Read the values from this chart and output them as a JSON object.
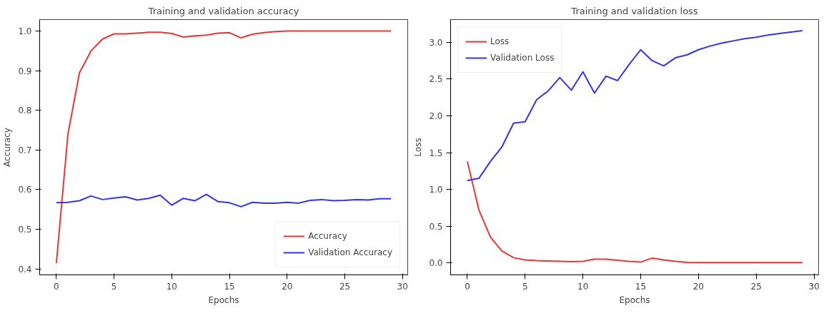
{
  "chart_data": [
    {
      "type": "line",
      "title": "Training and validation accuracy",
      "xlabel": "Epochs",
      "ylabel": "Accuracy",
      "legend": "bottom right",
      "grid": false,
      "x": [
        0,
        1,
        2,
        3,
        4,
        5,
        6,
        7,
        8,
        9,
        10,
        11,
        12,
        13,
        14,
        15,
        16,
        17,
        18,
        19,
        20,
        21,
        22,
        23,
        24,
        25,
        26,
        27,
        28,
        29
      ],
      "xlim": [
        -1.45,
        30.45
      ],
      "xticks": [
        0,
        5,
        10,
        15,
        20,
        25,
        30
      ],
      "ylim": [
        0.385,
        1.029
      ],
      "yticks": [
        {
          "value": 0.4,
          "label": "0.4"
        },
        {
          "value": 0.5,
          "label": "0.5"
        },
        {
          "value": 0.6,
          "label": "0.6"
        },
        {
          "value": 0.7,
          "label": "0.7"
        },
        {
          "value": 0.8,
          "label": "0.8"
        },
        {
          "value": 0.9,
          "label": "0.9"
        },
        {
          "value": 1.0,
          "label": "1.0"
        }
      ],
      "series": [
        {
          "name": "Accuracy",
          "color": "#ee3333",
          "values": [
            0.415,
            0.74,
            0.895,
            0.95,
            0.98,
            0.993,
            0.993,
            0.995,
            0.997,
            0.997,
            0.994,
            0.985,
            0.988,
            0.99,
            0.995,
            0.996,
            0.983,
            0.992,
            0.996,
            0.999,
            1.0,
            1.0,
            1.0,
            1.0,
            1.0,
            1.0,
            1.0,
            1.0,
            1.0,
            1.0
          ]
        },
        {
          "name": "Validation Accuracy",
          "color": "#3333ee",
          "values": [
            0.567,
            0.568,
            0.572,
            0.584,
            0.575,
            0.579,
            0.582,
            0.574,
            0.578,
            0.586,
            0.561,
            0.578,
            0.572,
            0.588,
            0.57,
            0.567,
            0.557,
            0.568,
            0.566,
            0.566,
            0.568,
            0.566,
            0.573,
            0.575,
            0.572,
            0.573,
            0.575,
            0.574,
            0.577,
            0.577
          ]
        }
      ]
    },
    {
      "type": "line",
      "title": "Training and validation loss",
      "xlabel": "Epochs",
      "ylabel": "Loss",
      "legend": "top left",
      "grid": false,
      "x": [
        0,
        1,
        2,
        3,
        4,
        5,
        6,
        7,
        8,
        9,
        10,
        11,
        12,
        13,
        14,
        15,
        16,
        17,
        18,
        19,
        20,
        21,
        22,
        23,
        24,
        25,
        26,
        27,
        28,
        29
      ],
      "xlim": [
        -1.45,
        30.4
      ],
      "xticks": [
        0,
        5,
        10,
        15,
        20,
        25,
        30
      ],
      "ylim": [
        -0.164,
        3.31
      ],
      "yticks": [
        {
          "value": 0,
          "label": "0.0"
        },
        {
          "value": 0.5,
          "label": "0.5"
        },
        {
          "value": 1.0,
          "label": "1.0"
        },
        {
          "value": 1.5,
          "label": "1.5"
        },
        {
          "value": 2.0,
          "label": "2.0"
        },
        {
          "value": 2.5,
          "label": "2.5"
        },
        {
          "value": 3.0,
          "label": "3.0"
        }
      ],
      "series": [
        {
          "name": "Loss",
          "color": "#ee3333",
          "values": [
            1.38,
            0.72,
            0.35,
            0.16,
            0.07,
            0.04,
            0.03,
            0.025,
            0.02,
            0.015,
            0.02,
            0.05,
            0.05,
            0.035,
            0.02,
            0.01,
            0.065,
            0.04,
            0.02,
            0.005,
            0.003,
            0.003,
            0.003,
            0.003,
            0.003,
            0.003,
            0.003,
            0.003,
            0.003,
            0.003
          ]
        },
        {
          "name": "Validation Loss",
          "color": "#3333ee",
          "values": [
            1.12,
            1.15,
            1.38,
            1.58,
            1.9,
            1.92,
            2.22,
            2.34,
            2.52,
            2.35,
            2.6,
            2.31,
            2.54,
            2.48,
            2.7,
            2.9,
            2.75,
            2.68,
            2.79,
            2.83,
            2.9,
            2.95,
            2.99,
            3.02,
            3.05,
            3.07,
            3.1,
            3.12,
            3.14,
            3.16
          ]
        }
      ]
    }
  ]
}
